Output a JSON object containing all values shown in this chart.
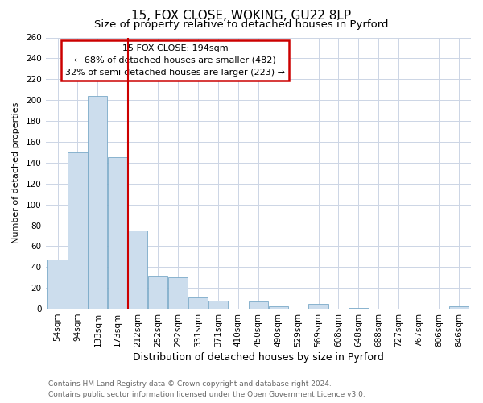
{
  "title": "15, FOX CLOSE, WOKING, GU22 8LP",
  "subtitle": "Size of property relative to detached houses in Pyrford",
  "xlabel": "Distribution of detached houses by size in Pyrford",
  "ylabel": "Number of detached properties",
  "bin_labels": [
    "54sqm",
    "94sqm",
    "133sqm",
    "173sqm",
    "212sqm",
    "252sqm",
    "292sqm",
    "331sqm",
    "371sqm",
    "410sqm",
    "450sqm",
    "490sqm",
    "529sqm",
    "569sqm",
    "608sqm",
    "648sqm",
    "688sqm",
    "727sqm",
    "767sqm",
    "806sqm",
    "846sqm"
  ],
  "bar_heights": [
    47,
    150,
    204,
    145,
    75,
    31,
    30,
    11,
    8,
    0,
    7,
    2,
    0,
    5,
    0,
    1,
    0,
    0,
    0,
    0,
    2
  ],
  "bar_color": "#ccdded",
  "bar_edge_color": "#7aaac8",
  "vline_x_index": 3,
  "annotation_title": "15 FOX CLOSE: 194sqm",
  "annotation_line1": "← 68% of detached houses are smaller (482)",
  "annotation_line2": "32% of semi-detached houses are larger (223) →",
  "annotation_box_color": "#cc0000",
  "ylim": [
    0,
    260
  ],
  "yticks": [
    0,
    20,
    40,
    60,
    80,
    100,
    120,
    140,
    160,
    180,
    200,
    220,
    240,
    260
  ],
  "footer_line1": "Contains HM Land Registry data © Crown copyright and database right 2024.",
  "footer_line2": "Contains public sector information licensed under the Open Government Licence v3.0.",
  "bg_color": "#ffffff",
  "grid_color": "#ccd5e5",
  "title_fontsize": 11,
  "subtitle_fontsize": 9.5,
  "xlabel_fontsize": 9,
  "ylabel_fontsize": 8,
  "tick_fontsize": 7.5,
  "annotation_fontsize": 8,
  "footer_fontsize": 6.5
}
